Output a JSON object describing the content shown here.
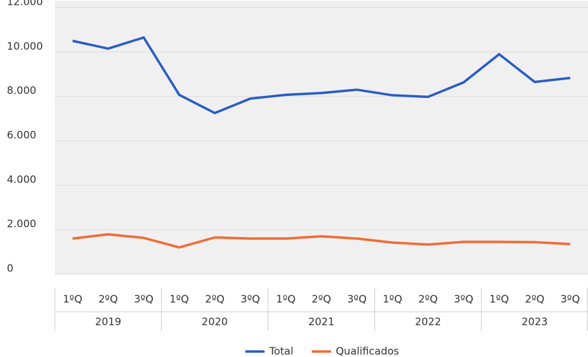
{
  "chart_data": {
    "type": "line",
    "categories": [
      "1ºQ",
      "2ºQ",
      "3ºQ",
      "1ºQ",
      "2ºQ",
      "3ºQ",
      "1ºQ",
      "2ºQ",
      "3ºQ",
      "1ºQ",
      "2ºQ",
      "3ºQ",
      "1ºQ",
      "2ºQ",
      "3ºQ"
    ],
    "groups": [
      "2019",
      "2020",
      "2021",
      "2022",
      "2023"
    ],
    "series": [
      {
        "name": "Total",
        "color": "#2a5cc4",
        "values": [
          10500,
          10150,
          10650,
          8070,
          7250,
          7900,
          8070,
          8150,
          8300,
          8050,
          7980,
          8630,
          9900,
          8650,
          8830
        ]
      },
      {
        "name": "Qualificados",
        "color": "#f26b35",
        "values": [
          1600,
          1790,
          1630,
          1200,
          1650,
          1600,
          1600,
          1700,
          1600,
          1420,
          1330,
          1450,
          1450,
          1440,
          1350
        ]
      }
    ],
    "ylim": [
      0,
      12000
    ],
    "yticks": [
      0,
      {
        "value": 2000,
        "label": "2.000"
      },
      {
        "value": 4000,
        "label": "4.000"
      },
      {
        "value": 6000,
        "label": "6.000"
      },
      {
        "value": 8000,
        "label": "8.000"
      },
      {
        "value": 10000,
        "label": "10.000"
      },
      {
        "value": 12000,
        "label": "12.000"
      }
    ],
    "grid": true,
    "legend": "bottom"
  }
}
